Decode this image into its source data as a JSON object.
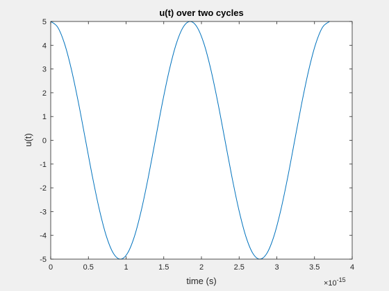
{
  "chart_data": {
    "type": "line",
    "title": "u(t) over two cycles",
    "xlabel": "time (s)",
    "ylabel": "u(t)",
    "x_exponent_base": "×10",
    "x_exponent_power": "-15",
    "xlim": [
      0,
      4e-15
    ],
    "ylim": [
      -5,
      5
    ],
    "x_tick_values": [
      0,
      5e-16,
      1e-15,
      1.5e-15,
      2e-15,
      2.5e-15,
      3e-15,
      3.5e-15,
      4e-15
    ],
    "x_tick_labels": [
      "0",
      "0.5",
      "1",
      "1.5",
      "2",
      "2.5",
      "3",
      "3.5",
      "4"
    ],
    "y_tick_values": [
      5,
      4,
      3,
      2,
      1,
      0,
      -1,
      -2,
      -3,
      -4,
      -5
    ],
    "y_tick_labels": [
      "5",
      "4",
      "3",
      "2",
      "1",
      "0",
      "-1",
      "-2",
      "-3",
      "-4",
      "-5"
    ],
    "grid": false,
    "line_color": "#0072bd",
    "series": [
      {
        "x": [
          0,
          9.25e-17,
          1.85e-16,
          2.775e-16,
          3.7e-16,
          4.625e-16,
          5.55e-16,
          6.475e-16,
          7.4e-16,
          8.325e-16,
          9.25e-16,
          1.0175e-15,
          1.11e-15,
          1.2025e-15,
          1.295e-15,
          1.3875e-15,
          1.48e-15,
          1.5725e-15,
          1.665e-15,
          1.7575e-15,
          1.85e-15,
          1.9425e-15,
          2.035e-15,
          2.1275e-15,
          2.22e-15,
          2.3125e-15,
          2.405e-15,
          2.4975e-15,
          2.59e-15,
          2.6825e-15,
          2.775e-15,
          2.8675e-15,
          2.96e-15,
          3.0525e-15,
          3.145e-15,
          3.2375e-15,
          3.33e-15,
          3.4225e-15,
          3.515e-15,
          3.6075e-15,
          3.7e-15
        ],
        "y": [
          5,
          4.76,
          4.05,
          2.94,
          1.55,
          0,
          -1.55,
          -2.94,
          -4.05,
          -4.76,
          -5,
          -4.76,
          -4.05,
          -2.94,
          -1.55,
          0,
          1.55,
          2.94,
          4.05,
          4.76,
          5,
          4.76,
          4.05,
          2.94,
          1.55,
          0,
          -1.55,
          -2.94,
          -4.05,
          -4.76,
          -5,
          -4.76,
          -4.05,
          -2.94,
          -1.55,
          0,
          1.55,
          2.94,
          4.05,
          4.76,
          5
        ]
      }
    ]
  }
}
